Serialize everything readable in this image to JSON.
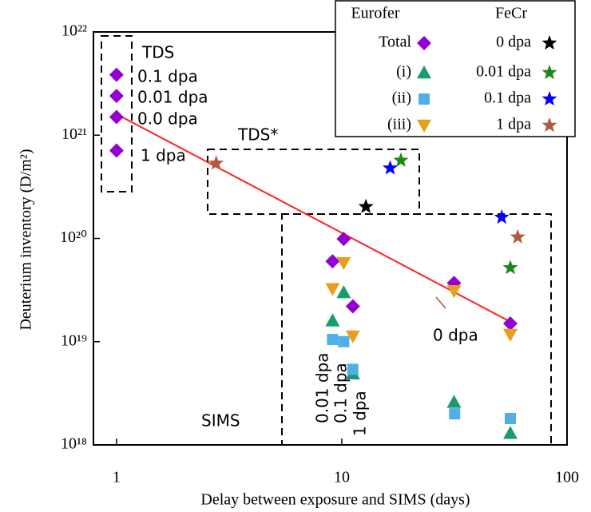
{
  "chart_data": {
    "type": "scatter",
    "x_label": "Delay between exposure and SIMS (days)",
    "y_label": "Deuterium inventory (D/m²)",
    "xlog": true,
    "ylog": true,
    "xlim": [
      0.79,
      100
    ],
    "ylim": [
      1e+18,
      1e+22
    ],
    "xticks": [
      1,
      10,
      100
    ],
    "yticks": [
      {
        "value": 1e+18,
        "label": "10¹⁸"
      },
      {
        "value": 1e+19,
        "label": "10¹⁹"
      },
      {
        "value": 1e+20,
        "label": "10²⁰"
      },
      {
        "value": 1e+21,
        "label": "10²¹"
      },
      {
        "value": 1e+22,
        "label": "10²²"
      }
    ],
    "series_groups": [
      {
        "name": "Eurofer",
        "series": [
          {
            "name": "Total",
            "marker": "diamond",
            "color": "#9400d3",
            "x": [
              1,
              1,
              1,
              1,
              9.1,
              10.2,
              11.2,
              31.5,
              56
            ],
            "values": [
              3.85e+21,
              2.4e+21,
              1.5e+21,
              7.1e+20,
              6e+19,
              9.9e+19,
              2.2e+19,
              3.7e+19,
              1.5e+19
            ]
          },
          {
            "name": "(i)",
            "marker": "triangle",
            "color": "#1a9a70",
            "x": [
              9.1,
              10.2,
              11.2,
              31.5,
              56
            ],
            "values": [
              1.6e+19,
              3e+19,
              4.9e+18,
              2.6e+18,
              1.3e+18
            ]
          },
          {
            "name": "(ii)",
            "marker": "square",
            "color": "#4fb0e8",
            "x": [
              9.1,
              10.2,
              11.2,
              31.7,
              56
            ],
            "values": [
              1.05e+19,
              1e+19,
              5.4e+18,
              2e+18,
              1.8e+18
            ]
          },
          {
            "name": "(iii)",
            "marker": "triangle-down",
            "color": "#e6a020",
            "x": [
              9.1,
              10.2,
              11.2,
              31.5,
              56
            ],
            "values": [
              3.25e+19,
              5.8e+19,
              1.13e+19,
              3.1e+19,
              1.17e+19
            ]
          }
        ]
      },
      {
        "name": "FeCr",
        "series": [
          {
            "name": "0 dpa",
            "marker": "star",
            "color": "#000000",
            "x": [
              12.8
            ],
            "values": [
              2.03e+20
            ]
          },
          {
            "name": "0.01 dpa",
            "marker": "star",
            "color": "#1a8a1a",
            "x": [
              18.3,
              56
            ],
            "values": [
              5.7e+20,
              5.2e+19
            ]
          },
          {
            "name": "0.1 dpa",
            "marker": "star",
            "color": "#0000ff",
            "x": [
              16.4,
              51.3
            ],
            "values": [
              4.8e+20,
              1.6e+20
            ]
          },
          {
            "name": "1 dpa",
            "marker": "star",
            "color": "#b05a40",
            "x": [
              2.77,
              60.4
            ],
            "values": [
              5.35e+20,
              1.03e+20
            ]
          }
        ]
      }
    ],
    "fit_line": {
      "color": "#ff2020",
      "x": [
        1,
        56
      ],
      "values": [
        1.6e+21,
        1.56e+19
      ]
    },
    "annotations": [
      "TDS",
      "0.1 dpa",
      "0.01 dpa",
      "0.0 dpa",
      "1 dpa",
      "TDS*",
      "SIMS",
      "0 dpa",
      "0.01 dpa",
      "0.1 dpa",
      "1 dpa"
    ]
  }
}
